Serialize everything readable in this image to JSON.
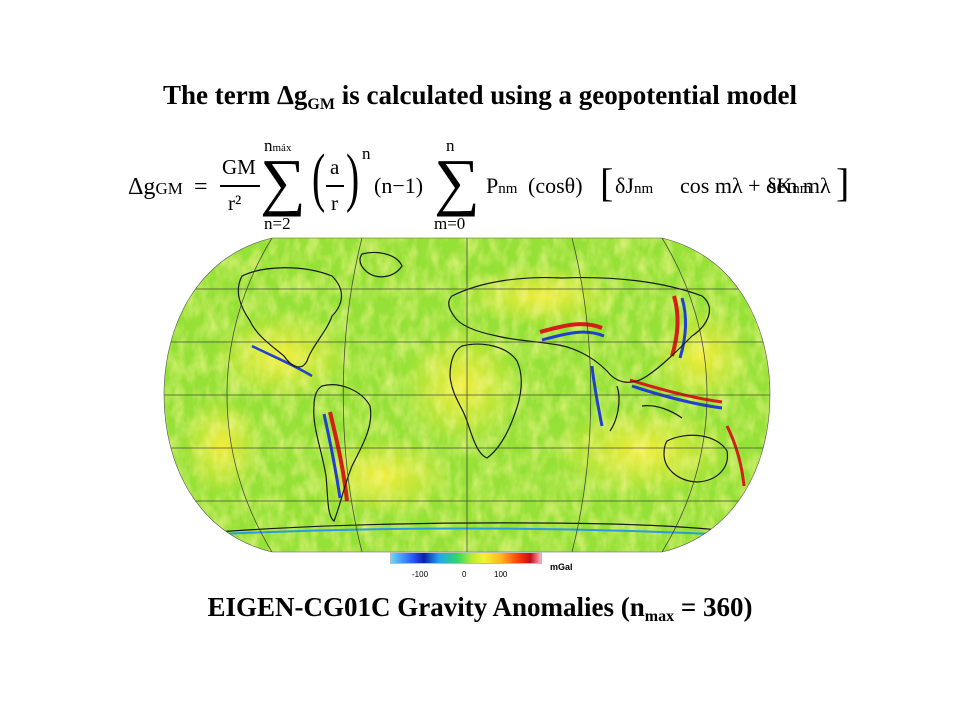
{
  "title": {
    "prefix": "The term ",
    "delta_g": "Δg",
    "sub": "GM",
    "suffix": " is calculated using a geopotential model"
  },
  "formula": {
    "lhs": "Δg",
    "lhs_sub": "GM",
    "equals": "=",
    "gm_num": "GM",
    "gm_den": "r²",
    "sum1_upper": "n",
    "sum1_upper_sub": "máx",
    "sum1_lower": "n=2",
    "a_num": "a",
    "a_den": "r",
    "pow_n": "n",
    "n_minus_1": "(n−1)",
    "sum2_upper": "n",
    "sum2_lower": "m=0",
    "p_term": "P",
    "p_sub": "nm",
    "cos_theta": "(cosθ)",
    "bracket_open": "[",
    "dj": "δJ",
    "dj_sub": "nm",
    "cos_ml": "cos mλ + δK",
    "dk_sub": "nm",
    "sen_ml": "sen mλ",
    "bracket_close": "]"
  },
  "map": {
    "icon": "gravity-anomaly-world-map"
  },
  "colorbar": {
    "ticks": [
      "-100",
      "0",
      "100"
    ],
    "unit": "mGal"
  },
  "caption": {
    "prefix": "EIGEN-CG01C  Gravity Anomalies (n",
    "sub": "max",
    "suffix": " = 360)"
  }
}
